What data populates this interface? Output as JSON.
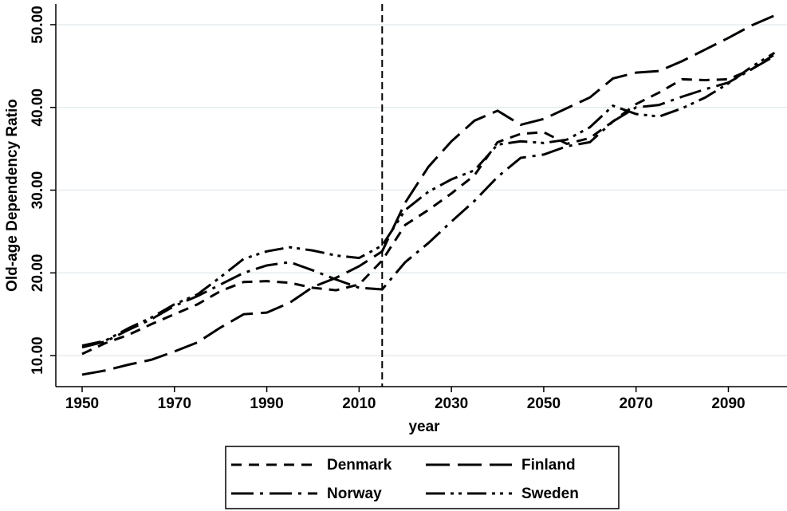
{
  "chart_data": {
    "type": "line",
    "x_label": "year",
    "y_label": "Old-age Dependency Ratio",
    "x": [
      1950,
      1955,
      1960,
      1965,
      1970,
      1975,
      1980,
      1985,
      1990,
      1995,
      2000,
      2005,
      2010,
      2015,
      2020,
      2025,
      2030,
      2035,
      2040,
      2045,
      2050,
      2055,
      2060,
      2065,
      2070,
      2075,
      2080,
      2085,
      2090,
      2095,
      2100
    ],
    "series": [
      {
        "name": "Denmark",
        "color": "#000000",
        "linestyle": "dashed",
        "values": [
          10.2,
          11.5,
          12.5,
          13.8,
          15.0,
          16.2,
          17.8,
          18.9,
          19.0,
          18.8,
          18.2,
          17.9,
          18.6,
          21.5,
          25.8,
          27.6,
          29.6,
          31.8,
          35.8,
          36.8,
          37.0,
          35.6,
          36.3,
          38.3,
          40.4,
          41.8,
          43.4,
          43.3,
          43.4,
          44.6,
          46.4
        ]
      },
      {
        "name": "Finland",
        "color": "#000000",
        "linestyle": "longdash",
        "values": [
          7.7,
          8.2,
          8.9,
          9.5,
          10.5,
          11.6,
          13.4,
          15.0,
          15.2,
          16.4,
          18.3,
          19.4,
          20.8,
          22.6,
          28.5,
          32.8,
          35.9,
          38.4,
          39.6,
          37.9,
          38.6,
          39.9,
          41.2,
          43.5,
          44.2,
          44.4,
          45.6,
          47.0,
          48.4,
          49.9,
          51.1
        ]
      },
      {
        "name": "Norway",
        "color": "#000000",
        "linestyle": "dashdot",
        "values": [
          11.0,
          11.7,
          13.1,
          14.4,
          16.0,
          17.2,
          18.6,
          20.0,
          20.9,
          21.3,
          20.3,
          19.2,
          18.2,
          18.0,
          21.3,
          23.6,
          26.2,
          28.7,
          31.6,
          33.9,
          34.3,
          35.3,
          35.8,
          38.3,
          40.0,
          40.3,
          41.3,
          42.2,
          43.0,
          44.6,
          46.2
        ]
      },
      {
        "name": "Sweden",
        "color": "#000000",
        "linestyle": "dashdotdot",
        "values": [
          11.2,
          11.8,
          13.3,
          14.6,
          16.2,
          17.4,
          19.5,
          21.7,
          22.6,
          23.1,
          22.7,
          22.1,
          21.8,
          23.3,
          27.6,
          29.8,
          31.3,
          32.4,
          35.5,
          35.9,
          35.7,
          36.1,
          37.6,
          40.2,
          39.2,
          38.9,
          39.9,
          41.2,
          42.9,
          44.9,
          46.6
        ]
      }
    ],
    "xlim": [
      1944.3,
      2102.7
    ],
    "ylim": [
      6.25,
      52.5
    ],
    "xticks": [
      1950,
      1970,
      1990,
      2010,
      2030,
      2050,
      2070,
      2090
    ],
    "yticks": [
      {
        "value": 10,
        "label": "10.00"
      },
      {
        "value": 20,
        "label": "20.00"
      },
      {
        "value": 30,
        "label": "30.00"
      },
      {
        "value": 40,
        "label": "40.00"
      },
      {
        "value": 50,
        "label": "50.00"
      }
    ],
    "vline": 2015,
    "grid": true,
    "legend": "bottom"
  }
}
